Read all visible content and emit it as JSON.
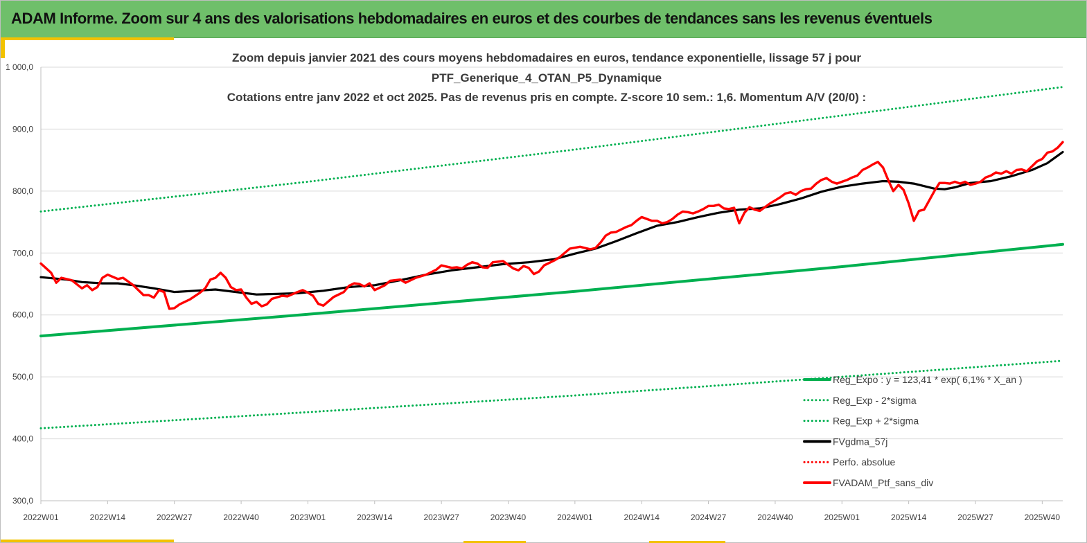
{
  "banner": {
    "title": "ADAM Informe. Zoom sur 4 ans des valorisations hebdomadaires en euros et des courbes de tendances sans les revenus éventuels"
  },
  "colors": {
    "banner_bg": "#6fbf6a",
    "accent": "#f2c200",
    "trend_green": "#00b050",
    "smooth_black": "#000000",
    "perf_red": "#ff0000",
    "gridline": "#d9d9d9"
  },
  "chart_data": {
    "type": "line",
    "title_lines": [
      "Zoom depuis janvier 2021 des cours moyens hebdomadaires  en euros, tendance exponentielle, lissage 57 j pour",
      "PTF_Generique_4_OTAN_P5_Dynamique",
      "Cotations  entre janv 2022 et oct 2025. Pas de revenus pris en compte. Z-score 10 sem.: 1,6. Momentum A/V (20/0) :"
    ],
    "xlabel": "",
    "ylabel": "",
    "x_tick_labels": [
      "2022W01",
      "2022W14",
      "2022W27",
      "2022W40",
      "2023W01",
      "2023W14",
      "2023W27",
      "2023W40",
      "2024W01",
      "2024W14",
      "2024W27",
      "2024W40",
      "2025W01",
      "2025W14",
      "2025W27",
      "2025W40"
    ],
    "x_tick_index": [
      0,
      13,
      26,
      39,
      52,
      65,
      78,
      91,
      104,
      117,
      130,
      143,
      156,
      169,
      182,
      195
    ],
    "x_range_weeks": [
      0,
      199
    ],
    "y_tick_labels": [
      "300,0",
      "400,0",
      "500,0",
      "600,0",
      "700,0",
      "800,0",
      "900,0",
      "1 000,0"
    ],
    "ylim": [
      300,
      1000
    ],
    "grid": "horizontal",
    "legend_position": "bottom-right",
    "legend": [
      {
        "label": "Reg_Expo : y = 123,41 * exp( 6,1% *  X_an )",
        "style": "solid-green"
      },
      {
        "label": "Reg_Exp - 2*sigma",
        "style": "dotted-green"
      },
      {
        "label": "Reg_Exp + 2*sigma",
        "style": "dotted-green"
      },
      {
        "label": "FVgdma_57j",
        "style": "solid-black"
      },
      {
        "label": "Perfo. absolue",
        "style": "dotted-red"
      },
      {
        "label": "FVADAM_Ptf_sans_div",
        "style": "solid-red"
      }
    ],
    "series": [
      {
        "name": "Reg_Expo : y = 123,41 * exp( 6,1% *  X_an )",
        "color": "#00b050",
        "style": "solid",
        "points": [
          [
            0,
            566
          ],
          [
            52,
            601
          ],
          [
            104,
            638
          ],
          [
            156,
            678
          ],
          [
            199,
            714
          ]
        ]
      },
      {
        "name": "Reg_Exp - 2*sigma",
        "color": "#00b050",
        "style": "dotted",
        "points": [
          [
            0,
            417
          ],
          [
            52,
            443
          ],
          [
            104,
            470
          ],
          [
            156,
            500
          ],
          [
            199,
            526
          ]
        ]
      },
      {
        "name": "Reg_Exp + 2*sigma",
        "color": "#00b050",
        "style": "dotted",
        "points": [
          [
            0,
            767
          ],
          [
            52,
            815
          ],
          [
            104,
            867
          ],
          [
            156,
            922
          ],
          [
            199,
            968
          ]
        ]
      },
      {
        "name": "FVgdma_57j",
        "color": "#000000",
        "style": "solid",
        "points": [
          [
            0,
            661
          ],
          [
            5,
            657
          ],
          [
            8,
            653
          ],
          [
            12,
            651
          ],
          [
            15,
            651
          ],
          [
            18,
            648
          ],
          [
            22,
            643
          ],
          [
            26,
            637
          ],
          [
            30,
            639
          ],
          [
            34,
            641
          ],
          [
            38,
            637
          ],
          [
            42,
            633
          ],
          [
            46,
            634
          ],
          [
            50,
            635
          ],
          [
            55,
            639
          ],
          [
            60,
            645
          ],
          [
            65,
            648
          ],
          [
            70,
            656
          ],
          [
            75,
            665
          ],
          [
            80,
            672
          ],
          [
            85,
            677
          ],
          [
            90,
            682
          ],
          [
            95,
            685
          ],
          [
            100,
            690
          ],
          [
            104,
            699
          ],
          [
            108,
            707
          ],
          [
            112,
            719
          ],
          [
            116,
            732
          ],
          [
            120,
            744
          ],
          [
            124,
            750
          ],
          [
            128,
            758
          ],
          [
            132,
            765
          ],
          [
            136,
            770
          ],
          [
            140,
            772
          ],
          [
            144,
            779
          ],
          [
            148,
            788
          ],
          [
            152,
            799
          ],
          [
            156,
            807
          ],
          [
            160,
            812
          ],
          [
            164,
            816
          ],
          [
            167,
            815
          ],
          [
            170,
            812
          ],
          [
            172,
            808
          ],
          [
            174,
            804
          ],
          [
            176,
            803
          ],
          [
            178,
            806
          ],
          [
            181,
            813
          ],
          [
            185,
            816
          ],
          [
            189,
            824
          ],
          [
            193,
            834
          ],
          [
            196,
            845
          ],
          [
            199,
            863
          ]
        ]
      },
      {
        "name": "FVADAM_Ptf_sans_div",
        "color": "#ff0000",
        "style": "solid",
        "points": [
          [
            0,
            683
          ],
          [
            2,
            668
          ],
          [
            3,
            652
          ],
          [
            4,
            660
          ],
          [
            6,
            656
          ],
          [
            8,
            643
          ],
          [
            9,
            648
          ],
          [
            10,
            640
          ],
          [
            11,
            645
          ],
          [
            12,
            660
          ],
          [
            13,
            665
          ],
          [
            15,
            658
          ],
          [
            16,
            660
          ],
          [
            18,
            648
          ],
          [
            20,
            632
          ],
          [
            21,
            632
          ],
          [
            22,
            628
          ],
          [
            23,
            640
          ],
          [
            24,
            637
          ],
          [
            25,
            610
          ],
          [
            26,
            611
          ],
          [
            27,
            617
          ],
          [
            29,
            625
          ],
          [
            31,
            636
          ],
          [
            32,
            643
          ],
          [
            33,
            657
          ],
          [
            34,
            660
          ],
          [
            35,
            668
          ],
          [
            36,
            660
          ],
          [
            37,
            645
          ],
          [
            38,
            640
          ],
          [
            39,
            641
          ],
          [
            40,
            628
          ],
          [
            41,
            618
          ],
          [
            42,
            621
          ],
          [
            43,
            614
          ],
          [
            44,
            617
          ],
          [
            45,
            626
          ],
          [
            47,
            631
          ],
          [
            48,
            630
          ],
          [
            50,
            637
          ],
          [
            51,
            640
          ],
          [
            52,
            636
          ],
          [
            53,
            631
          ],
          [
            54,
            618
          ],
          [
            55,
            615
          ],
          [
            57,
            629
          ],
          [
            59,
            637
          ],
          [
            60,
            647
          ],
          [
            61,
            651
          ],
          [
            62,
            650
          ],
          [
            63,
            646
          ],
          [
            64,
            651
          ],
          [
            65,
            640
          ],
          [
            67,
            648
          ],
          [
            68,
            655
          ],
          [
            70,
            657
          ],
          [
            71,
            652
          ],
          [
            73,
            660
          ],
          [
            75,
            665
          ],
          [
            77,
            673
          ],
          [
            78,
            680
          ],
          [
            80,
            676
          ],
          [
            81,
            677
          ],
          [
            82,
            675
          ],
          [
            83,
            681
          ],
          [
            84,
            685
          ],
          [
            85,
            683
          ],
          [
            86,
            677
          ],
          [
            87,
            676
          ],
          [
            88,
            685
          ],
          [
            90,
            687
          ],
          [
            91,
            681
          ],
          [
            92,
            675
          ],
          [
            93,
            672
          ],
          [
            94,
            679
          ],
          [
            95,
            676
          ],
          [
            96,
            666
          ],
          [
            97,
            670
          ],
          [
            98,
            680
          ],
          [
            100,
            688
          ],
          [
            101,
            693
          ],
          [
            103,
            707
          ],
          [
            105,
            710
          ],
          [
            106,
            708
          ],
          [
            107,
            706
          ],
          [
            108,
            708
          ],
          [
            109,
            717
          ],
          [
            110,
            728
          ],
          [
            111,
            733
          ],
          [
            112,
            734
          ],
          [
            114,
            742
          ],
          [
            115,
            745
          ],
          [
            116,
            752
          ],
          [
            117,
            758
          ],
          [
            118,
            755
          ],
          [
            119,
            752
          ],
          [
            120,
            752
          ],
          [
            121,
            748
          ],
          [
            122,
            750
          ],
          [
            123,
            755
          ],
          [
            124,
            762
          ],
          [
            125,
            767
          ],
          [
            126,
            766
          ],
          [
            127,
            764
          ],
          [
            128,
            767
          ],
          [
            129,
            771
          ],
          [
            130,
            776
          ],
          [
            131,
            776
          ],
          [
            132,
            778
          ],
          [
            133,
            772
          ],
          [
            134,
            771
          ],
          [
            135,
            773
          ],
          [
            136,
            748
          ],
          [
            137,
            765
          ],
          [
            138,
            774
          ],
          [
            139,
            770
          ],
          [
            140,
            768
          ],
          [
            141,
            774
          ],
          [
            142,
            780
          ],
          [
            143,
            785
          ],
          [
            144,
            790
          ],
          [
            145,
            796
          ],
          [
            146,
            798
          ],
          [
            147,
            794
          ],
          [
            148,
            800
          ],
          [
            149,
            803
          ],
          [
            150,
            804
          ],
          [
            151,
            812
          ],
          [
            152,
            818
          ],
          [
            153,
            821
          ],
          [
            154,
            815
          ],
          [
            155,
            812
          ],
          [
            156,
            815
          ],
          [
            157,
            818
          ],
          [
            158,
            822
          ],
          [
            159,
            825
          ],
          [
            160,
            834
          ],
          [
            161,
            838
          ],
          [
            162,
            843
          ],
          [
            163,
            847
          ],
          [
            164,
            838
          ],
          [
            165,
            818
          ],
          [
            166,
            800
          ],
          [
            167,
            810
          ],
          [
            168,
            802
          ],
          [
            169,
            780
          ],
          [
            170,
            752
          ],
          [
            171,
            768
          ],
          [
            172,
            770
          ],
          [
            173,
            785
          ],
          [
            174,
            800
          ],
          [
            175,
            813
          ],
          [
            176,
            813
          ],
          [
            177,
            812
          ],
          [
            178,
            815
          ],
          [
            179,
            812
          ],
          [
            180,
            815
          ],
          [
            181,
            810
          ],
          [
            182,
            812
          ],
          [
            183,
            815
          ],
          [
            184,
            822
          ],
          [
            185,
            825
          ],
          [
            186,
            830
          ],
          [
            187,
            828
          ],
          [
            188,
            832
          ],
          [
            189,
            828
          ],
          [
            190,
            834
          ],
          [
            191,
            835
          ],
          [
            192,
            832
          ],
          [
            193,
            840
          ],
          [
            194,
            848
          ],
          [
            195,
            852
          ],
          [
            196,
            862
          ],
          [
            197,
            864
          ],
          [
            198,
            870
          ],
          [
            199,
            879
          ]
        ]
      }
    ]
  }
}
